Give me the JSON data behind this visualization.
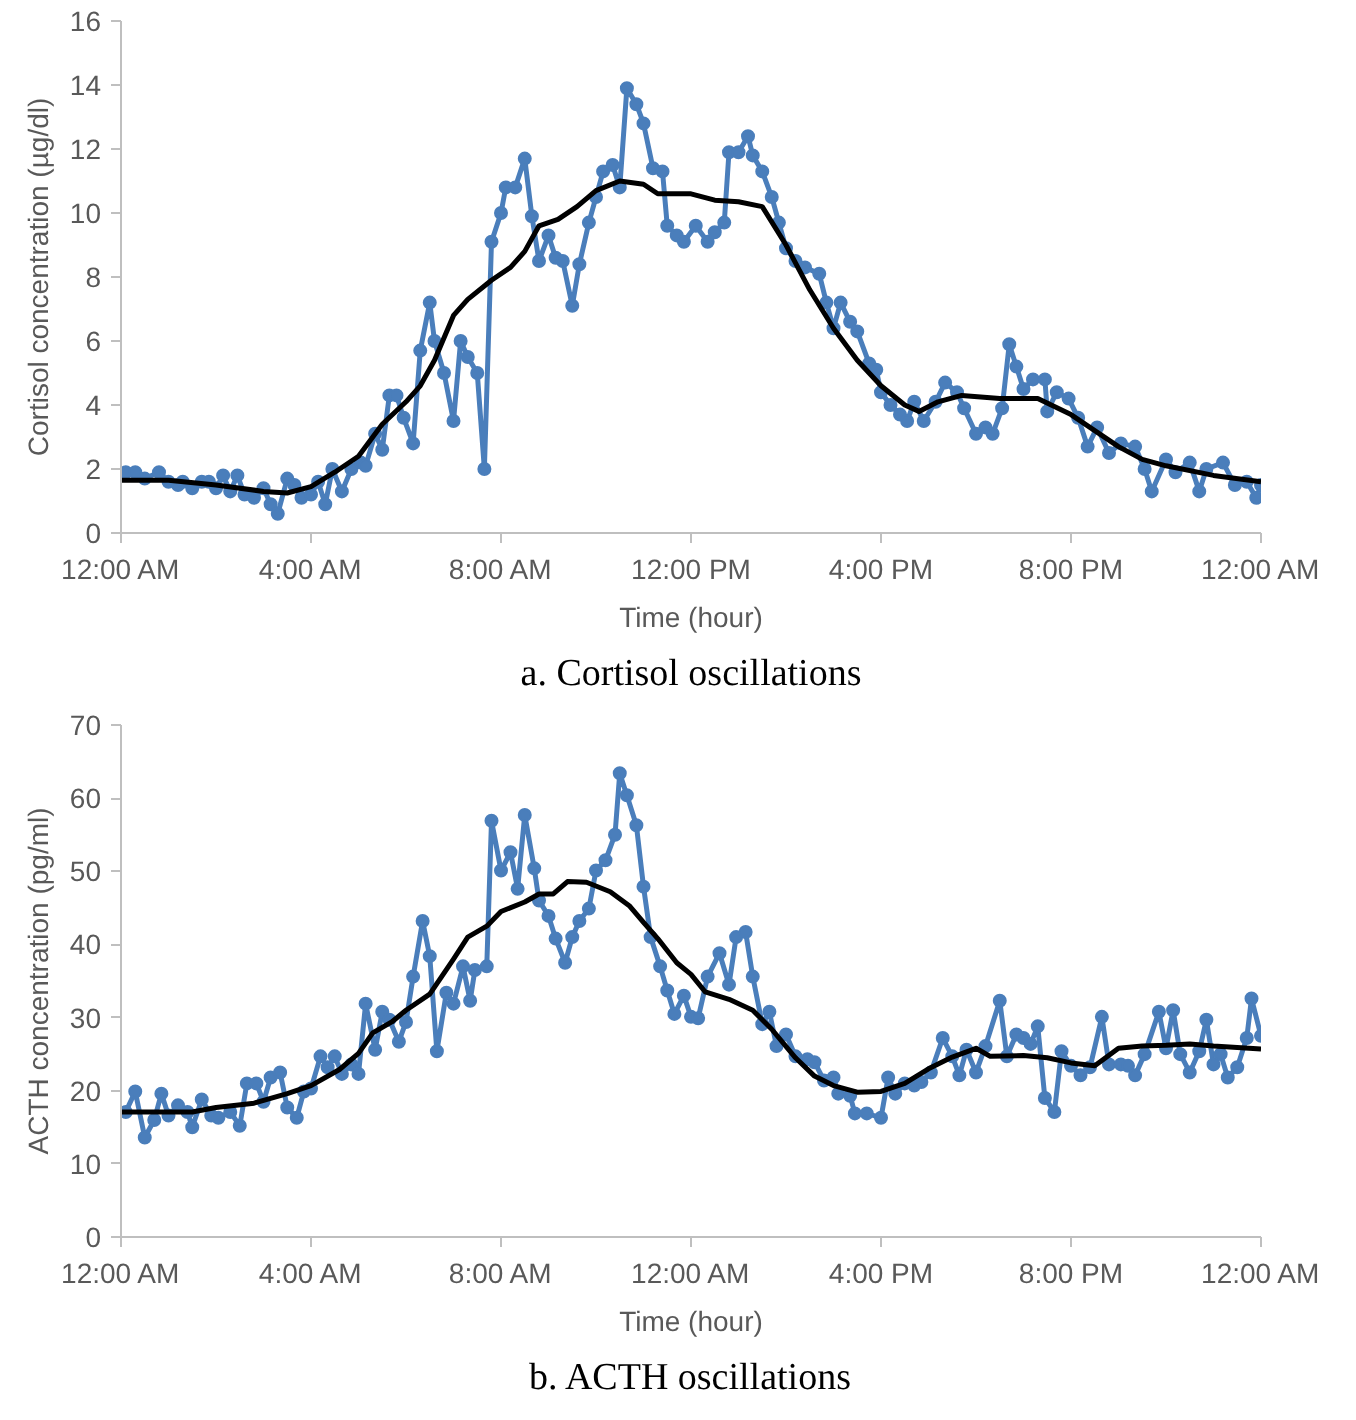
{
  "chart_data": [
    {
      "type": "line",
      "title": "a. Cortisol oscillations",
      "xlabel": "Time (hour)",
      "ylabel": "Cortisol concentration (µg/dl)",
      "xlim": [
        0,
        24
      ],
      "ylim": [
        0,
        16
      ],
      "xticks": [
        {
          "value": 0,
          "label": "12:00 AM"
        },
        {
          "value": 4,
          "label": "4:00 AM"
        },
        {
          "value": 8,
          "label": "8:00 AM"
        },
        {
          "value": 12,
          "label": "12:00 PM"
        },
        {
          "value": 16,
          "label": "4:00 PM"
        },
        {
          "value": 20,
          "label": "8:00 PM"
        },
        {
          "value": 24,
          "label": "12:00 AM"
        }
      ],
      "yticks": [
        0,
        2,
        4,
        6,
        8,
        10,
        12,
        14,
        16
      ],
      "grid": false,
      "series": [
        {
          "color": "#4a7ebb",
          "marker": "circle",
          "x": [
            0.1,
            0.3,
            0.5,
            0.8,
            1.0,
            1.2,
            1.3,
            1.5,
            1.7,
            1.85,
            2.0,
            2.15,
            2.3,
            2.45,
            2.6,
            2.8,
            3.0,
            3.15,
            3.3,
            3.5,
            3.65,
            3.8,
            4.0,
            4.15,
            4.3,
            4.45,
            4.65,
            4.85,
            5.05,
            5.15,
            5.35,
            5.5,
            5.65,
            5.8,
            5.95,
            6.15,
            6.3,
            6.5,
            6.6,
            6.8,
            7.0,
            7.15,
            7.3,
            7.5,
            7.65,
            7.8,
            8.0,
            8.1,
            8.3,
            8.5,
            8.65,
            8.8,
            9.0,
            9.15,
            9.3,
            9.5,
            9.65,
            9.85,
            10.0,
            10.15,
            10.35,
            10.5,
            10.65,
            10.85,
            11.0,
            11.2,
            11.4,
            11.5,
            11.7,
            11.85,
            12.1,
            12.35,
            12.5,
            12.7,
            12.8,
            13.0,
            13.2,
            13.3,
            13.5,
            13.7,
            13.85,
            14.0,
            14.2,
            14.4,
            14.7,
            14.85,
            15.0,
            15.15,
            15.35,
            15.5,
            15.75,
            15.9,
            16.0,
            16.2,
            16.4,
            16.55,
            16.7,
            16.9,
            17.15,
            17.35,
            17.6,
            17.75,
            18.0,
            18.2,
            18.35,
            18.55,
            18.7,
            18.85,
            19.0,
            19.2,
            19.45,
            19.5,
            19.7,
            19.95,
            20.15,
            20.35,
            20.55,
            20.8,
            21.05,
            21.35,
            21.55,
            21.7,
            22.0,
            22.2,
            22.5,
            22.7,
            22.85,
            23.2,
            23.45,
            23.7,
            23.9,
            24.0
          ],
          "values": [
            1.9,
            1.9,
            1.7,
            1.9,
            1.6,
            1.5,
            1.6,
            1.4,
            1.6,
            1.6,
            1.4,
            1.8,
            1.3,
            1.8,
            1.2,
            1.1,
            1.4,
            0.9,
            0.6,
            1.7,
            1.5,
            1.1,
            1.2,
            1.6,
            0.9,
            2.0,
            1.3,
            2.0,
            2.2,
            2.1,
            3.1,
            2.6,
            4.3,
            4.3,
            3.6,
            2.8,
            5.7,
            7.2,
            6.0,
            5.0,
            3.5,
            6.0,
            5.5,
            5.0,
            2.0,
            9.1,
            10.0,
            10.8,
            10.8,
            11.7,
            9.9,
            8.5,
            9.3,
            8.6,
            8.5,
            7.1,
            8.4,
            9.7,
            10.5,
            11.3,
            11.5,
            10.8,
            13.9,
            13.4,
            12.8,
            11.4,
            11.3,
            9.6,
            9.3,
            9.1,
            9.6,
            9.1,
            9.4,
            9.7,
            11.9,
            11.9,
            12.4,
            11.8,
            11.3,
            10.5,
            9.7,
            8.9,
            8.5,
            8.3,
            8.1,
            7.2,
            6.4,
            7.2,
            6.6,
            6.3,
            5.3,
            5.1,
            4.4,
            4.0,
            3.7,
            3.5,
            4.1,
            3.5,
            4.1,
            4.7,
            4.4,
            3.9,
            3.1,
            3.3,
            3.1,
            3.9,
            5.9,
            5.2,
            4.5,
            4.8,
            4.8,
            3.8,
            4.4,
            4.2,
            3.6,
            2.7,
            3.3,
            2.5,
            2.8,
            2.7,
            2.0,
            1.3,
            2.3,
            1.9,
            2.2,
            1.3,
            2.0,
            2.2,
            1.5,
            1.6,
            1.1,
            1.5
          ]
        },
        {
          "color": "#000000",
          "marker": "none",
          "x": [
            0,
            1,
            2,
            3,
            3.5,
            4,
            4.5,
            5,
            5.5,
            6,
            6.3,
            6.6,
            7,
            7.3,
            7.8,
            8.2,
            8.5,
            8.8,
            9.2,
            9.6,
            10,
            10.5,
            11,
            11.3,
            11.6,
            12,
            12.5,
            13,
            13.5,
            14,
            14.5,
            15,
            15.5,
            16,
            16.5,
            16.8,
            17.2,
            17.7,
            18.5,
            19.3,
            20,
            20.5,
            21,
            21.5,
            22,
            23,
            24
          ],
          "values": [
            1.65,
            1.65,
            1.5,
            1.3,
            1.25,
            1.45,
            1.9,
            2.4,
            3.4,
            4.1,
            4.6,
            5.4,
            6.8,
            7.3,
            7.9,
            8.3,
            8.8,
            9.6,
            9.8,
            10.2,
            10.7,
            11.0,
            10.9,
            10.6,
            10.6,
            10.6,
            10.4,
            10.35,
            10.2,
            9.0,
            7.6,
            6.4,
            5.4,
            4.6,
            4.0,
            3.8,
            4.1,
            4.3,
            4.2,
            4.2,
            3.7,
            3.2,
            2.7,
            2.3,
            2.1,
            1.8,
            1.6
          ]
        }
      ]
    },
    {
      "type": "line",
      "title": "b. ACTH oscillations",
      "xlabel": "Time (hour)",
      "ylabel": "ACTH concentration (pg/ml)",
      "xlim": [
        0,
        24
      ],
      "ylim": [
        0,
        70
      ],
      "xticks": [
        {
          "value": 0,
          "label": "12:00 AM"
        },
        {
          "value": 4,
          "label": "4:00 AM"
        },
        {
          "value": 8,
          "label": "8:00 AM"
        },
        {
          "value": 12,
          "label": "12:00 AM"
        },
        {
          "value": 16,
          "label": "4:00 PM"
        },
        {
          "value": 20,
          "label": "8:00 PM"
        },
        {
          "value": 24,
          "label": "12:00 AM"
        }
      ],
      "yticks": [
        0,
        10,
        20,
        30,
        40,
        50,
        60,
        70
      ],
      "grid": false,
      "series": [
        {
          "color": "#4a7ebb",
          "marker": "circle",
          "x": [
            0.1,
            0.3,
            0.5,
            0.7,
            0.85,
            1.0,
            1.2,
            1.4,
            1.5,
            1.7,
            1.9,
            2.05,
            2.3,
            2.5,
            2.65,
            2.85,
            3.0,
            3.15,
            3.35,
            3.5,
            3.7,
            3.85,
            4.0,
            4.2,
            4.35,
            4.5,
            4.65,
            4.85,
            5.0,
            5.15,
            5.35,
            5.5,
            5.65,
            5.85,
            6.0,
            6.15,
            6.35,
            6.5,
            6.65,
            6.85,
            7.0,
            7.2,
            7.35,
            7.45,
            7.7,
            7.8,
            8.0,
            8.2,
            8.35,
            8.5,
            8.7,
            8.8,
            9.0,
            9.15,
            9.35,
            9.5,
            9.65,
            9.85,
            10.0,
            10.2,
            10.4,
            10.5,
            10.65,
            10.85,
            11.0,
            11.15,
            11.35,
            11.5,
            11.65,
            11.85,
            12.0,
            12.15,
            12.35,
            12.6,
            12.8,
            12.95,
            13.15,
            13.3,
            13.5,
            13.65,
            13.8,
            14.0,
            14.2,
            14.45,
            14.6,
            14.8,
            15.0,
            15.1,
            15.35,
            15.45,
            15.7,
            16.0,
            16.15,
            16.3,
            16.5,
            16.7,
            16.85,
            17.05,
            17.3,
            17.5,
            17.65,
            17.8,
            18.0,
            18.2,
            18.5,
            18.65,
            18.85,
            19.0,
            19.15,
            19.3,
            19.45,
            19.65,
            19.8,
            20.0,
            20.2,
            20.4,
            20.65,
            20.8,
            21.05,
            21.2,
            21.35,
            21.55,
            21.85,
            22.0,
            22.15,
            22.3,
            22.5,
            22.7,
            22.85,
            23.0,
            23.15,
            23.3,
            23.5,
            23.7,
            23.8,
            24.0
          ],
          "values": [
            17.1,
            19.9,
            13.6,
            16.0,
            19.6,
            16.6,
            18.0,
            17.1,
            15.0,
            18.8,
            16.6,
            16.3,
            17.1,
            15.2,
            21.0,
            21.0,
            18.5,
            21.8,
            22.5,
            17.7,
            16.3,
            19.9,
            20.3,
            24.7,
            23.2,
            24.7,
            22.3,
            23.6,
            22.3,
            31.9,
            25.6,
            30.8,
            29.7,
            26.7,
            29.4,
            35.6,
            43.2,
            38.4,
            25.4,
            33.4,
            31.9,
            37.0,
            32.3,
            36.5,
            37.0,
            56.9,
            50.1,
            52.6,
            47.6,
            57.7,
            50.4,
            46.0,
            43.9,
            40.8,
            37.5,
            41.0,
            43.2,
            44.9,
            50.1,
            51.5,
            55.0,
            63.4,
            60.4,
            56.3,
            47.9,
            41.0,
            37.0,
            33.7,
            30.5,
            33.0,
            30.1,
            29.9,
            35.6,
            38.8,
            34.5,
            41.0,
            41.7,
            35.6,
            29.1,
            30.8,
            26.1,
            27.7,
            24.7,
            24.3,
            23.9,
            21.4,
            21.8,
            19.6,
            19.3,
            16.9,
            16.9,
            16.3,
            21.8,
            19.6,
            21.0,
            20.7,
            21.2,
            22.5,
            27.2,
            24.7,
            22.1,
            25.6,
            22.5,
            26.1,
            32.3,
            24.7,
            27.7,
            27.2,
            26.4,
            28.8,
            19.0,
            17.1,
            25.4,
            23.4,
            22.1,
            23.2,
            30.1,
            23.6,
            23.6,
            23.4,
            22.1,
            25.0,
            30.8,
            25.8,
            31.0,
            25.0,
            22.5,
            25.4,
            29.7,
            23.6,
            25.0,
            21.8,
            23.2,
            27.2,
            32.6,
            27.5
          ]
        },
        {
          "color": "#000000",
          "marker": "none",
          "x": [
            0,
            1.5,
            2,
            2.8,
            3.5,
            4,
            4.6,
            5,
            5.3,
            5.7,
            6,
            6.5,
            7,
            7.3,
            7.7,
            8,
            8.5,
            8.8,
            9.1,
            9.4,
            9.8,
            10.3,
            10.7,
            11,
            11.3,
            11.7,
            12,
            12.3,
            12.8,
            13.3,
            13.7,
            14.2,
            14.6,
            15,
            15.5,
            16,
            16.5,
            17,
            17.5,
            18,
            18.3,
            19,
            19.5,
            20,
            20.5,
            21,
            21.5,
            22,
            22.5,
            23,
            23.5,
            24
          ],
          "values": [
            17.1,
            17.1,
            17.7,
            18.3,
            19.6,
            20.7,
            22.9,
            25.1,
            27.9,
            29.4,
            31.0,
            33.2,
            38.0,
            41.0,
            42.5,
            44.5,
            45.8,
            46.9,
            46.9,
            48.6,
            48.5,
            47.2,
            45.3,
            43.0,
            40.8,
            37.5,
            35.9,
            33.5,
            32.5,
            31.0,
            28.4,
            24.5,
            22.0,
            20.7,
            19.8,
            19.9,
            21.0,
            23.0,
            24.6,
            25.8,
            24.7,
            24.8,
            24.5,
            23.8,
            23.4,
            25.8,
            26.1,
            26.2,
            26.4,
            26.1,
            25.9,
            25.7
          ]
        }
      ]
    }
  ]
}
